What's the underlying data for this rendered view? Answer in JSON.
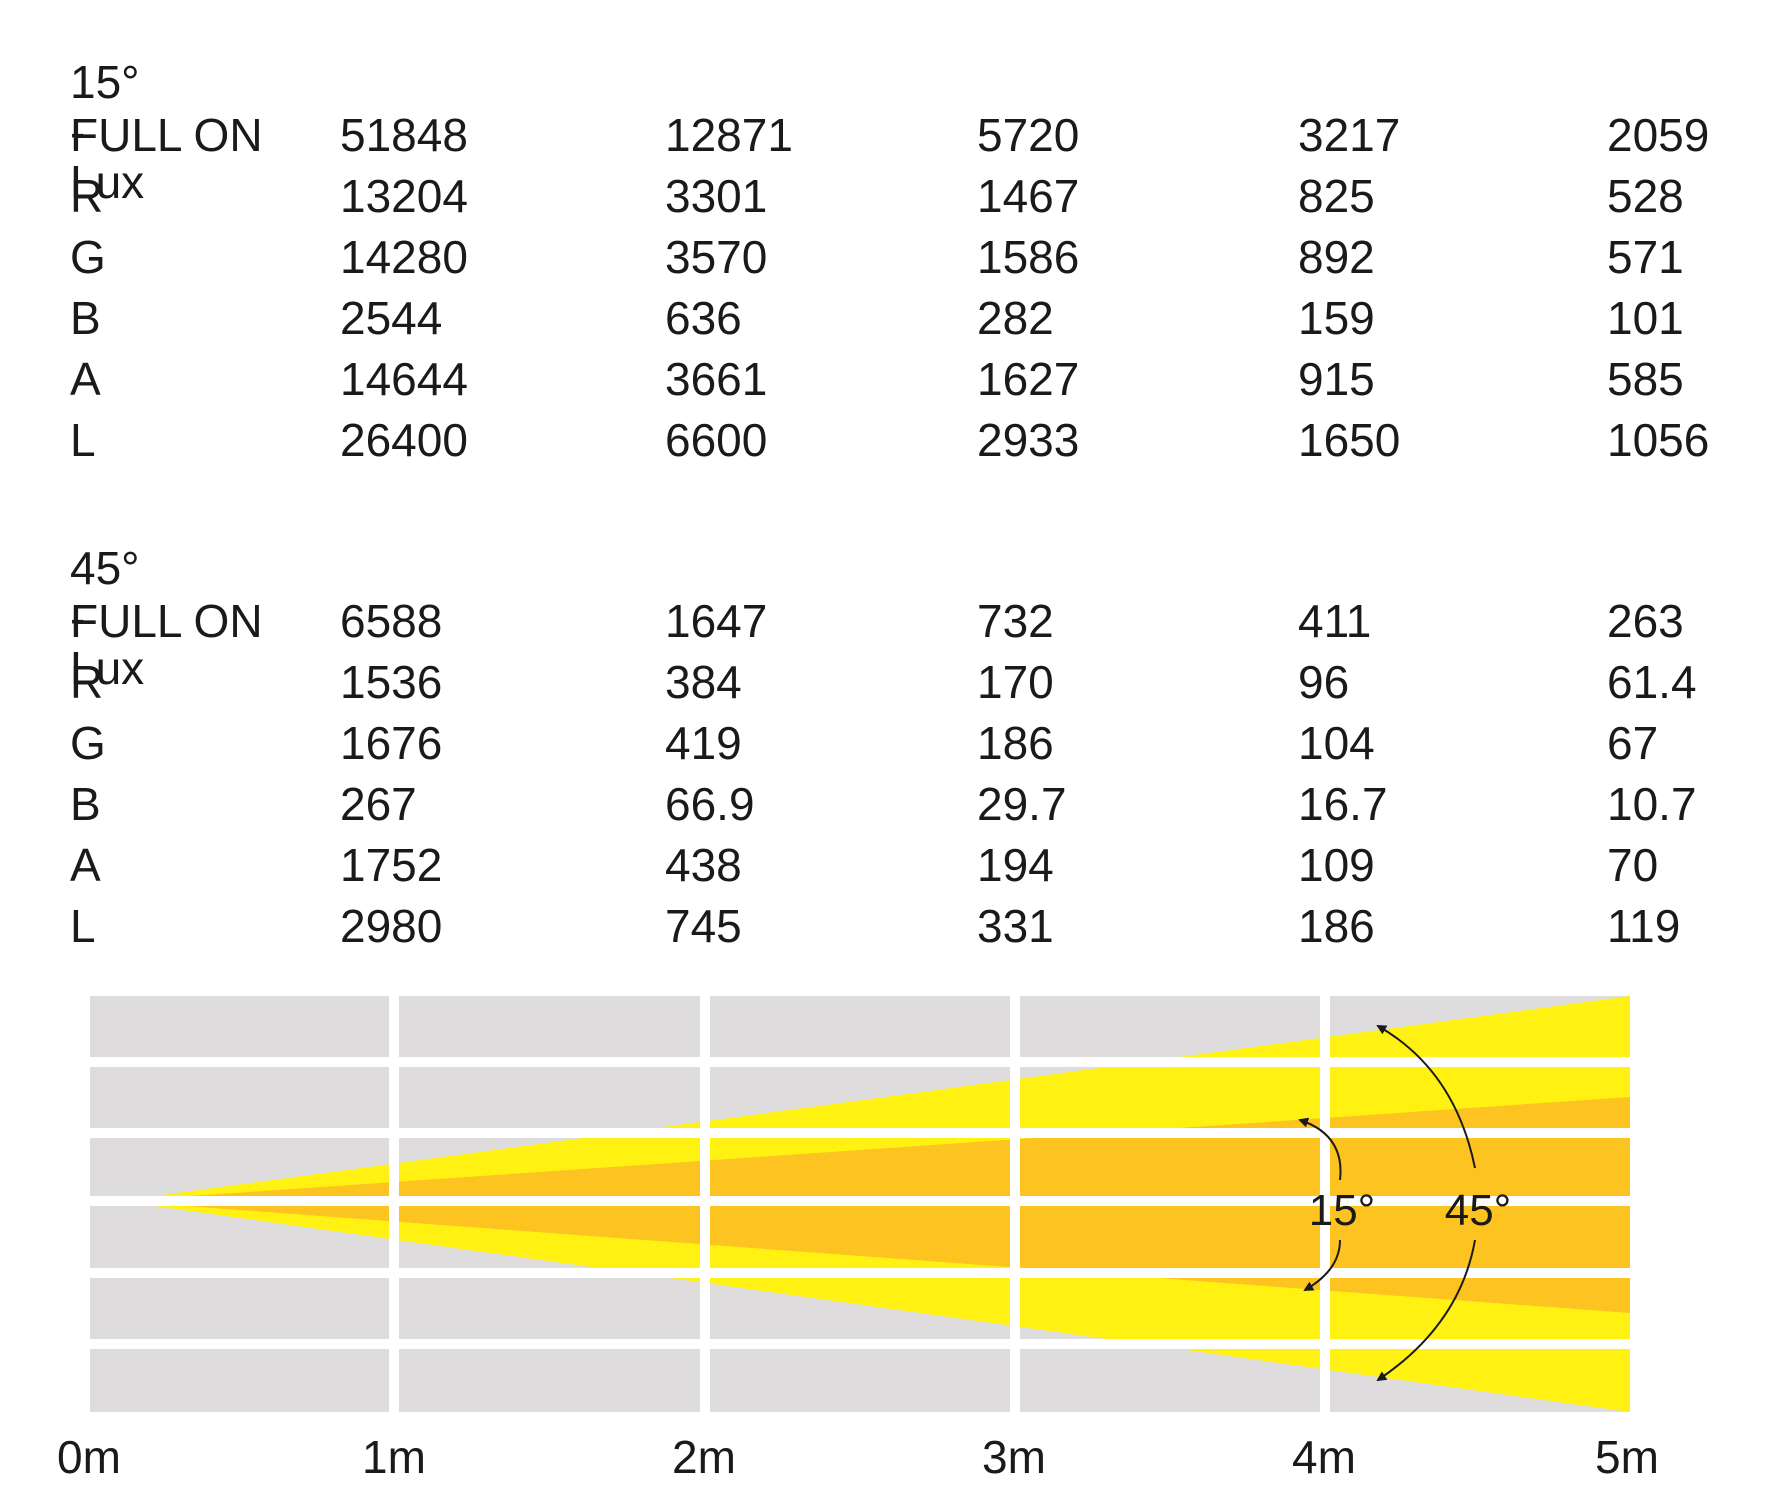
{
  "tables": [
    {
      "title": "15° - Lux",
      "rows": [
        {
          "label": "FULL ON",
          "values": [
            "51848",
            "12871",
            "5720",
            "3217",
            "2059"
          ]
        },
        {
          "label": "R",
          "values": [
            "13204",
            "3301",
            "1467",
            "825",
            "528"
          ]
        },
        {
          "label": "G",
          "values": [
            "14280",
            "3570",
            "1586",
            "892",
            "571"
          ]
        },
        {
          "label": "B",
          "values": [
            "2544",
            "636",
            "282",
            "159",
            "101"
          ]
        },
        {
          "label": "A",
          "values": [
            "14644",
            "3661",
            "1627",
            "915",
            "585"
          ]
        },
        {
          "label": "L",
          "values": [
            "26400",
            "6600",
            "2933",
            "1650",
            "1056"
          ]
        }
      ]
    },
    {
      "title": "45° - Lux",
      "rows": [
        {
          "label": "FULL ON",
          "values": [
            "6588",
            "1647",
            "732",
            "411",
            "263"
          ]
        },
        {
          "label": "R",
          "values": [
            "1536",
            "384",
            "170",
            "96",
            "61.4"
          ]
        },
        {
          "label": "G",
          "values": [
            "1676",
            "419",
            "186",
            "104",
            "67"
          ]
        },
        {
          "label": "B",
          "values": [
            "267",
            "66.9",
            "29.7",
            "16.7",
            "10.7"
          ]
        },
        {
          "label": "A",
          "values": [
            "1752",
            "438",
            "194",
            "109",
            "70"
          ]
        },
        {
          "label": "L",
          "values": [
            "2980",
            "745",
            "331",
            "186",
            "119"
          ]
        }
      ]
    }
  ],
  "chart_data": {
    "type": "beam-angle diagram",
    "distance_labels": [
      "0m",
      "1m",
      "2m",
      "3m",
      "4m",
      "5m"
    ],
    "distance_values_m": [
      0,
      1,
      2,
      3,
      4,
      5
    ],
    "beams": [
      {
        "label": "15°",
        "angle_deg": 15,
        "color": "#fcc321"
      },
      {
        "label": "45°",
        "angle_deg": 45,
        "color": "#fff212"
      }
    ],
    "grid_color": "#dedcdd"
  }
}
